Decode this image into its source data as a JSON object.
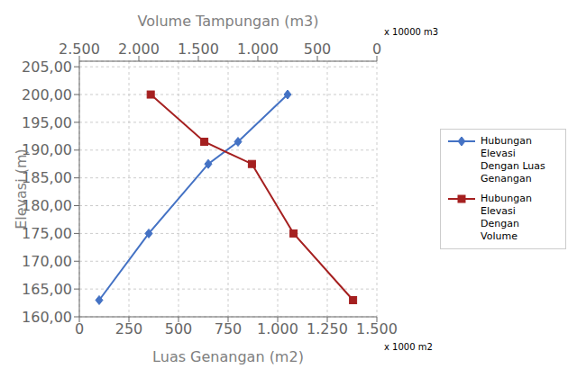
{
  "chart_data": {
    "type": "line",
    "xlabel": "Luas Genangan (m2)",
    "x2label": "Volume Tampungan (m3)",
    "ylabel": "Elevasi (m)",
    "annotations": [
      "x 10000 m3",
      "x 1000 m2"
    ],
    "series": [
      {
        "name": "Hubungan Elevasi\nDengan Luas\nGenangan",
        "color": "#4472C4",
        "marker": "diamond",
        "x": [
          100,
          350,
          650,
          800,
          1050
        ],
        "values": [
          163.0,
          175.0,
          187.5,
          191.5,
          200.0
        ]
      },
      {
        "name": "Hubungan Elevasi\nDengan Volume",
        "color": "#A52020",
        "marker": "square",
        "axis": "x2",
        "x": [
          1900,
          1450,
          1050,
          700,
          200
        ],
        "values": [
          200.0,
          191.5,
          187.5,
          175.0,
          163.0
        ]
      }
    ],
    "xlim": [
      0,
      1500
    ],
    "xticks": [
      0,
      250,
      500,
      750,
      {
        "value": 1000,
        "label": "1.000"
      },
      {
        "value": 1250,
        "label": "1.250"
      },
      {
        "value": 1500,
        "label": "1.500"
      }
    ],
    "x2lim": [
      2500,
      0
    ],
    "x2ticks": [
      0,
      500,
      {
        "value": 1000,
        "label": "1.000"
      },
      {
        "value": 1500,
        "label": "1.500"
      },
      {
        "value": 2000,
        "label": "2.000"
      },
      {
        "value": 2500,
        "label": "2.500"
      }
    ],
    "ylim": [
      160.0,
      206.0
    ],
    "yticks": [
      {
        "value": 160.0,
        "label": "160,00"
      },
      {
        "value": 165.0,
        "label": "165,00"
      },
      {
        "value": 170.0,
        "label": "170,00"
      },
      {
        "value": 175.0,
        "label": "175,00"
      },
      {
        "value": 180.0,
        "label": "180,00"
      },
      {
        "value": 185.0,
        "label": "185,00"
      },
      {
        "value": 190.0,
        "label": "190,00"
      },
      {
        "value": 195.0,
        "label": "195,00"
      },
      {
        "value": 200.0,
        "label": "200,00"
      },
      {
        "value": 205.0,
        "label": "205,00"
      }
    ],
    "grid": true,
    "legend": "right"
  }
}
